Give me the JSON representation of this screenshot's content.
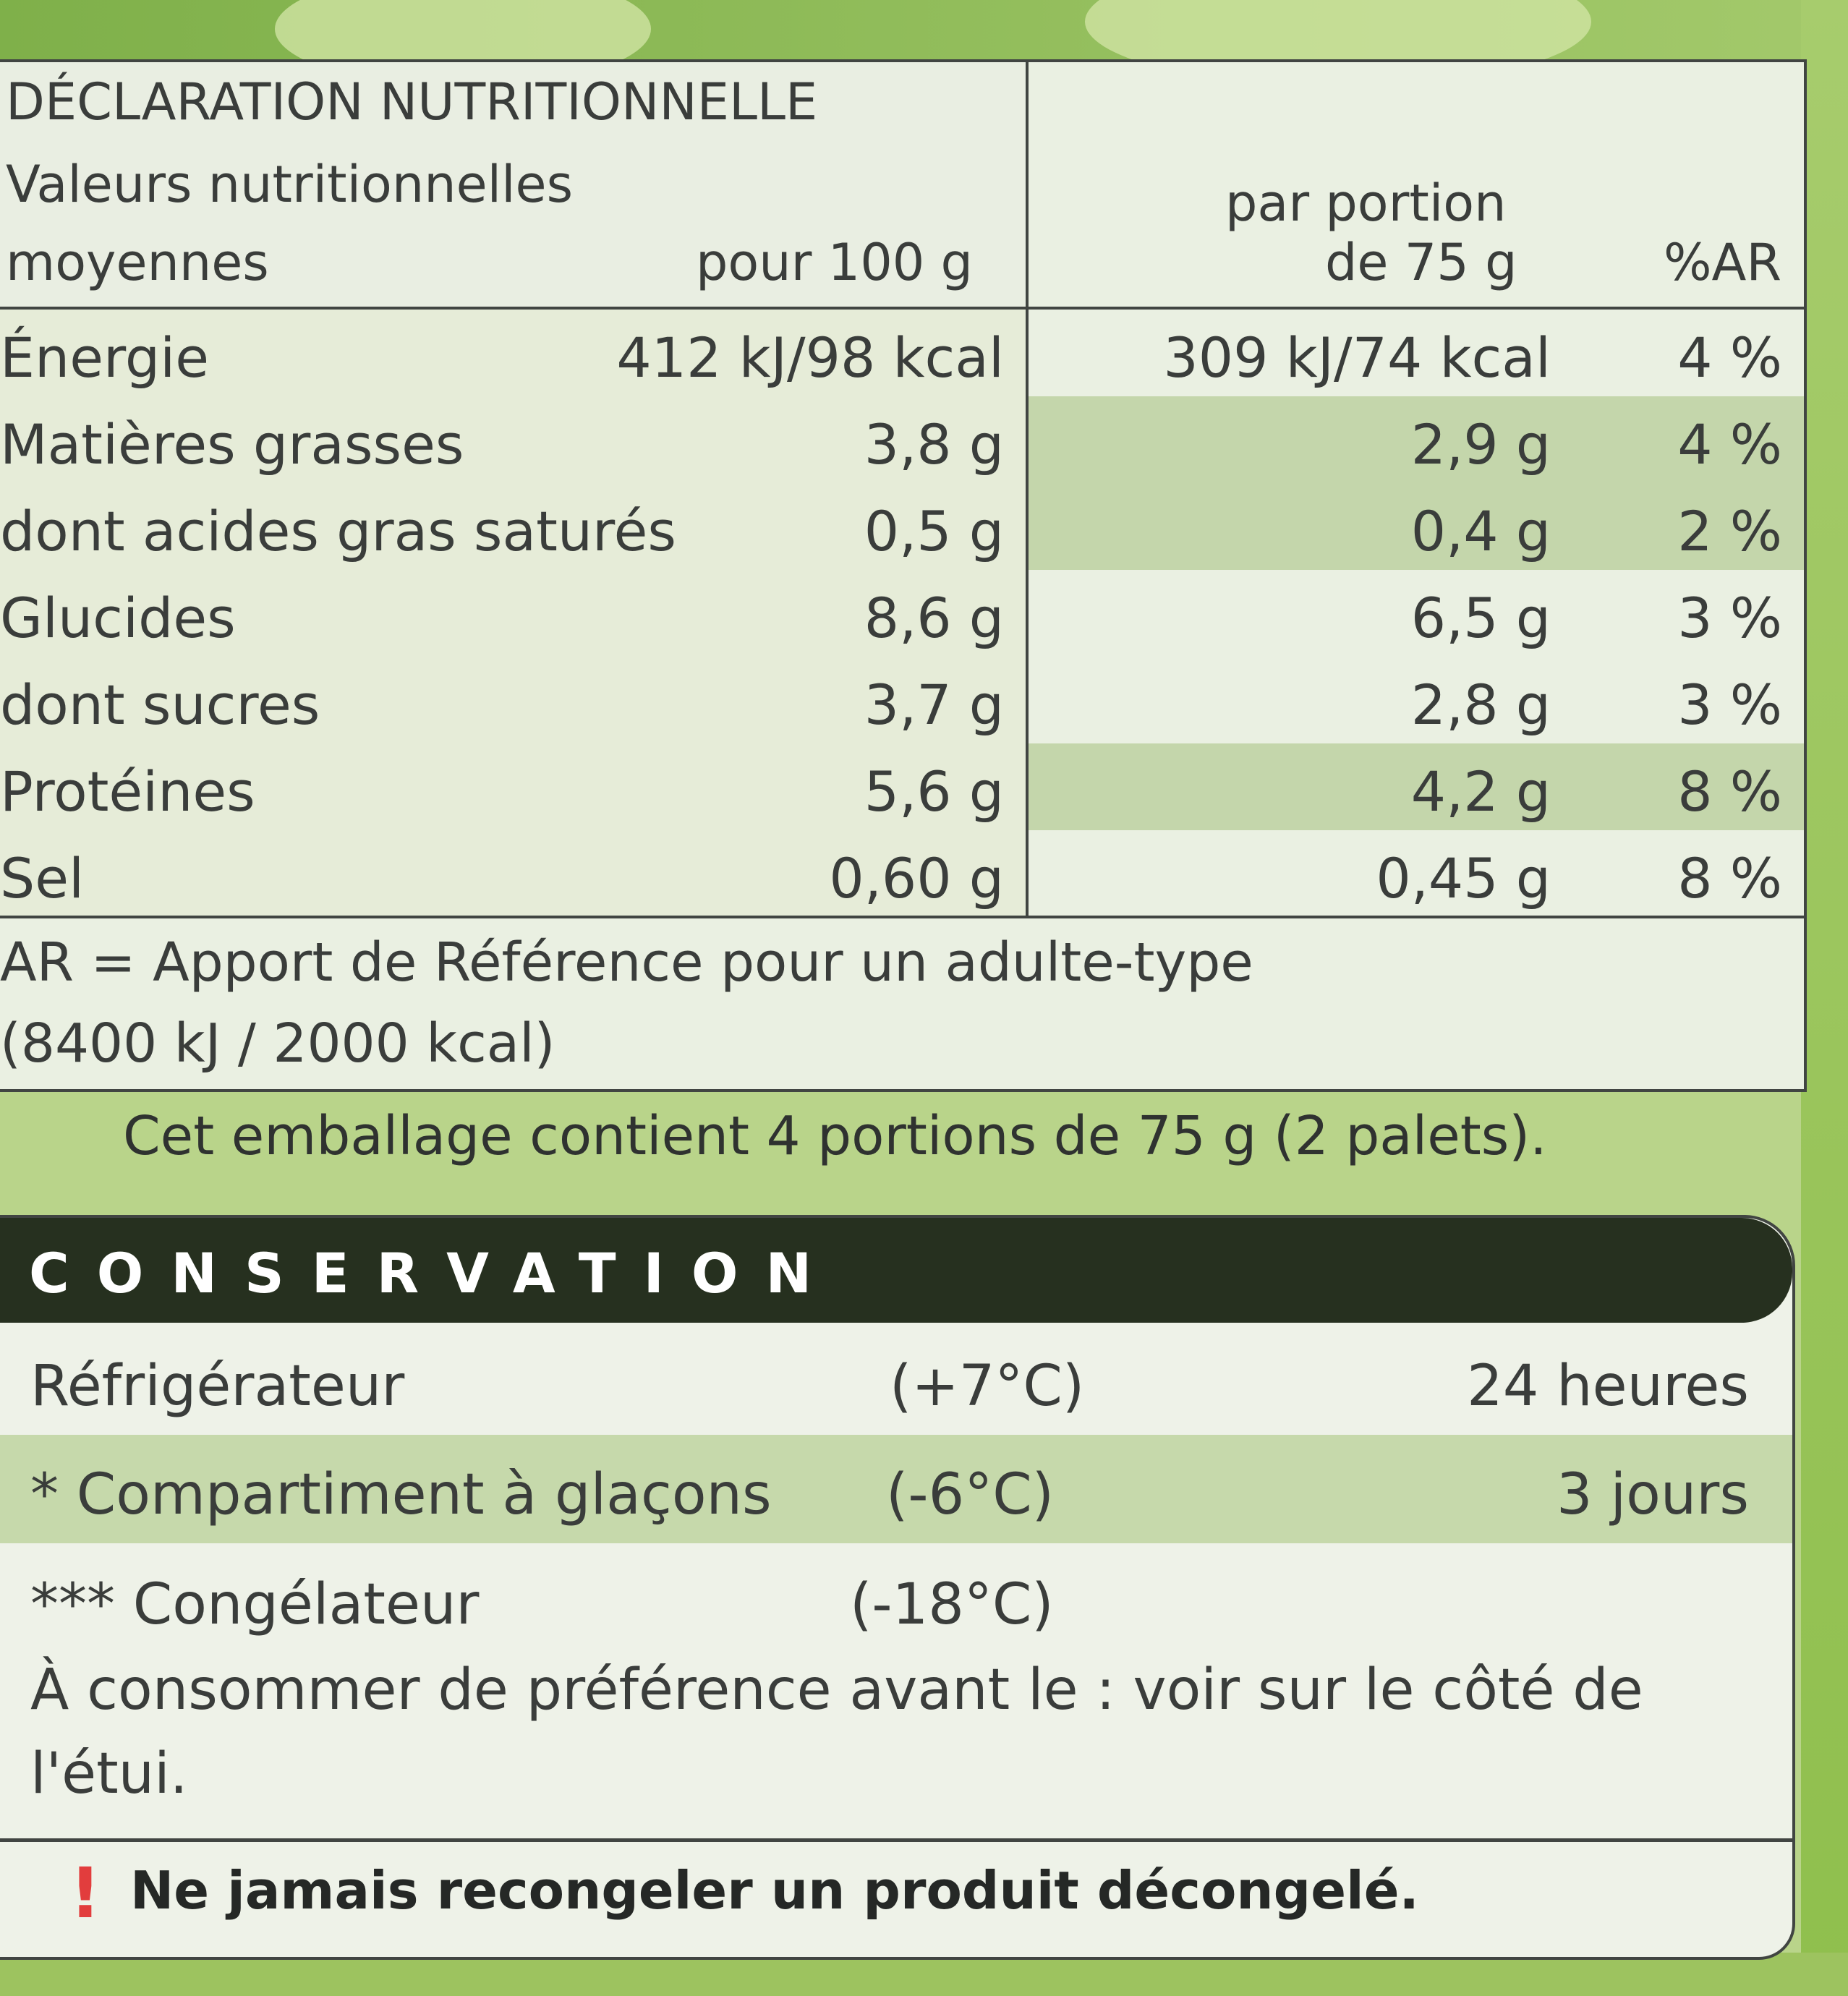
{
  "nutrition": {
    "title": "DÉCLARATION NUTRITIONNELLE",
    "subtitle_line1": "Valeurs nutritionnelles",
    "subtitle_line2": "moyennes",
    "col_per100": "pour 100 g",
    "col_portion_line1": "par portion",
    "col_portion_line2": "de 75 g",
    "col_ar": "%AR",
    "rows": [
      {
        "label": "Énergie",
        "per100": "412 kJ/98 kcal",
        "portion": "309 kJ/74 kcal",
        "ar": "4 %"
      },
      {
        "label": "Matières grasses",
        "per100": "3,8 g",
        "portion": "2,9 g",
        "ar": "4 %"
      },
      {
        "label": "dont acides gras saturés",
        "per100": "0,5 g",
        "portion": "0,4 g",
        "ar": "2 %"
      },
      {
        "label": "Glucides",
        "per100": "8,6 g",
        "portion": "6,5 g",
        "ar": "3 %"
      },
      {
        "label": "dont sucres",
        "per100": "3,7 g",
        "portion": "2,8 g",
        "ar": "3 %"
      },
      {
        "label": "Protéines",
        "per100": "5,6 g",
        "portion": "4,2 g",
        "ar": "8 %"
      },
      {
        "label": "Sel",
        "per100": "0,60 g",
        "portion": "0,45 g",
        "ar": "8 %"
      }
    ],
    "footnote_line1": "AR = Apport de Référence pour un adulte-type",
    "footnote_line2": "(8400 kJ / 2000 kcal)"
  },
  "portions_note": "Cet emballage contient 4 portions de 75 g (2 palets).",
  "conservation": {
    "title": "CONSERVATION",
    "rows": [
      {
        "label": "Réfrigérateur",
        "temp": "(+7°C)",
        "duration": "24 heures"
      },
      {
        "label": "* Compartiment à glaçons",
        "temp": "(-6°C)",
        "duration": "3 jours"
      },
      {
        "label": "*** Congélateur",
        "temp": "(-18°C)",
        "duration": ""
      }
    ],
    "best_before": "À consommer de préférence avant le : voir sur le côté de l'étui.",
    "warning_icon": "!",
    "warning": "Ne jamais recongeler un produit décongelé."
  },
  "colors": {
    "shade_green": "#c4d6ab",
    "header_dark": "#26301f",
    "warning_red": "#e23d3d"
  }
}
